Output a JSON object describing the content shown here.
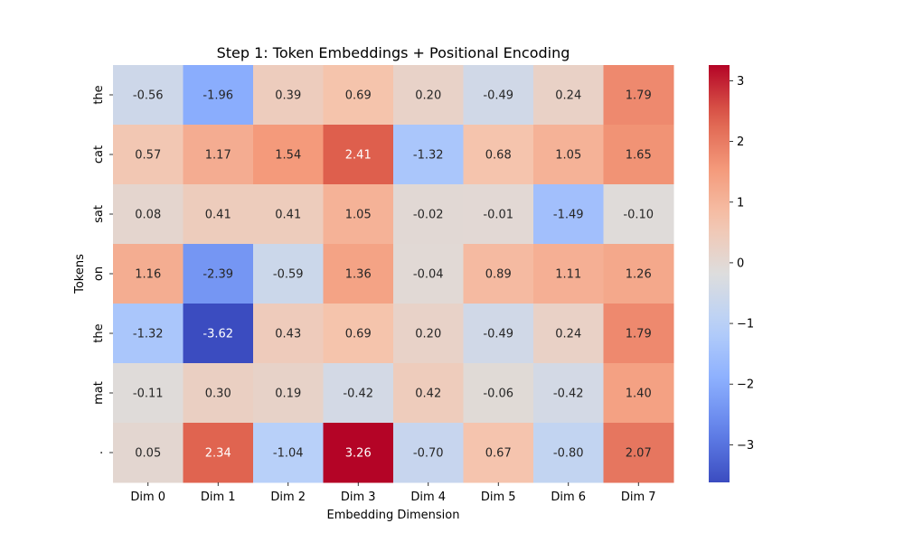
{
  "chart_data": {
    "type": "heatmap",
    "title": "Step 1: Token Embeddings + Positional Encoding",
    "xlabel": "Embedding Dimension",
    "ylabel": "Tokens",
    "x_categories": [
      "Dim 0",
      "Dim 1",
      "Dim 2",
      "Dim 3",
      "Dim 4",
      "Dim 5",
      "Dim 6",
      "Dim 7"
    ],
    "y_categories": [
      "the",
      "cat",
      "sat",
      "on",
      "the",
      "mat",
      "."
    ],
    "values": [
      [
        -0.56,
        -1.96,
        0.39,
        0.69,
        0.2,
        -0.49,
        0.24,
        1.79
      ],
      [
        0.57,
        1.17,
        1.54,
        2.41,
        -1.32,
        0.68,
        1.05,
        1.65
      ],
      [
        0.08,
        0.41,
        0.41,
        1.05,
        -0.02,
        -0.01,
        -1.49,
        -0.1
      ],
      [
        1.16,
        -2.39,
        -0.59,
        1.36,
        -0.04,
        0.89,
        1.11,
        1.26
      ],
      [
        -1.32,
        -3.62,
        0.43,
        0.69,
        0.2,
        -0.49,
        0.24,
        1.79
      ],
      [
        -0.11,
        0.3,
        0.19,
        -0.42,
        0.42,
        -0.06,
        -0.42,
        1.4
      ],
      [
        0.05,
        2.34,
        -1.04,
        3.26,
        -0.7,
        0.67,
        -0.8,
        2.07
      ]
    ],
    "colormap": "coolwarm",
    "colorbar": {
      "range": [
        -3.62,
        3.26
      ],
      "ticks": [
        3,
        2,
        1,
        0,
        -1,
        -2,
        -3
      ],
      "tick_labels": [
        "3",
        "2",
        "1",
        "0",
        "−1",
        "−2",
        "−3"
      ]
    },
    "annotations": true,
    "grid": false
  }
}
